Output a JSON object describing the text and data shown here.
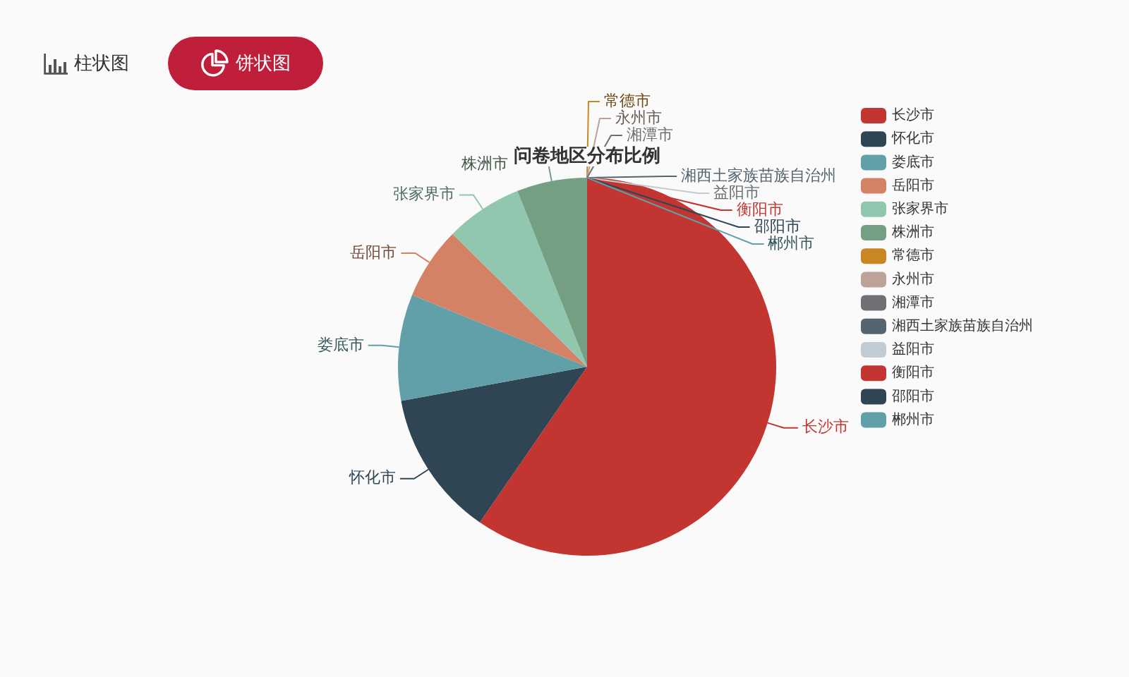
{
  "chart_data": {
    "type": "pie",
    "title": "问卷地区分布比例",
    "categories": [
      "长沙市",
      "怀化市",
      "娄底市",
      "岳阳市",
      "张家界市",
      "株洲市",
      "常德市",
      "永州市",
      "湘潭市",
      "湘西土家族苗族自治州",
      "益阳市",
      "衡阳市",
      "邵阳市",
      "郴州市"
    ],
    "values": [
      59.6,
      12.5,
      9.1,
      6.2,
      6.6,
      6.0,
      0,
      0,
      0,
      0,
      0,
      0,
      0,
      0
    ],
    "colors": [
      "#c23531",
      "#2f4554",
      "#61a0a8",
      "#d48265",
      "#91c7ae",
      "#749f83",
      "#ca8622",
      "#bda29a",
      "#6e7074",
      "#546570",
      "#c4ccd3",
      "#c23531",
      "#2f4554",
      "#61a0a8"
    ],
    "legend": "top right",
    "annotations": [
      "柱状图",
      "饼状图"
    ]
  }
}
